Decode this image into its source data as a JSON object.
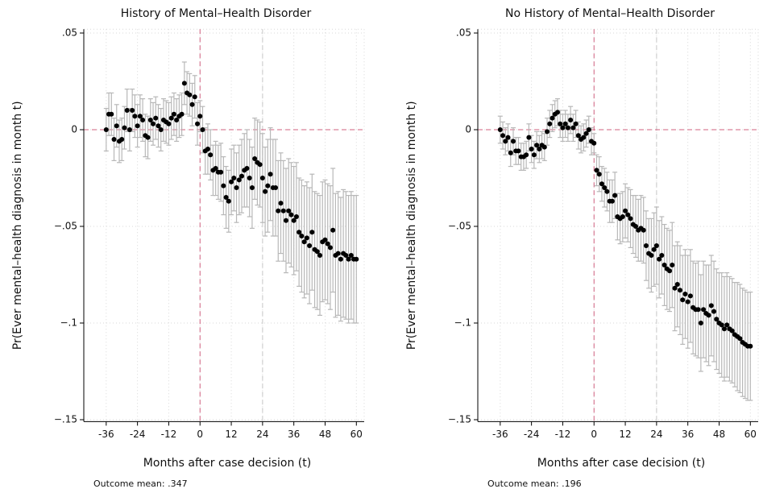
{
  "chart_data": [
    {
      "type": "errorbar",
      "title": "History of Mental–Health Disorder",
      "xlabel": "Months after case decision (t)",
      "ylabel": "Pr(Ever mental–health diagnosis in month t)",
      "note": "Outcome mean: .347",
      "x": [
        -36,
        -35,
        -34,
        -33,
        -32,
        -31,
        -30,
        -29,
        -28,
        -27,
        -26,
        -25,
        -24,
        -23,
        -22,
        -21,
        -20,
        -19,
        -18,
        -17,
        -16,
        -15,
        -14,
        -13,
        -12,
        -11,
        -10,
        -9,
        -8,
        -7,
        -6,
        -5,
        -4,
        -3,
        -2,
        -1,
        0,
        1,
        2,
        3,
        4,
        5,
        6,
        7,
        8,
        9,
        10,
        11,
        12,
        13,
        14,
        15,
        16,
        17,
        18,
        19,
        20,
        21,
        22,
        23,
        24,
        25,
        26,
        27,
        28,
        29,
        30,
        31,
        32,
        33,
        34,
        35,
        36,
        37,
        38,
        39,
        40,
        41,
        42,
        43,
        44,
        45,
        46,
        47,
        48,
        49,
        50,
        51,
        52,
        53,
        54,
        55,
        56,
        57,
        58,
        59,
        60
      ],
      "values": [
        0,
        0.008,
        0.008,
        -0.005,
        0.002,
        -0.006,
        -0.005,
        0.001,
        0.01,
        0,
        0.01,
        0.007,
        0.002,
        0.007,
        0.005,
        -0.003,
        -0.004,
        0.005,
        0.003,
        0.006,
        0.002,
        0,
        0.005,
        0.004,
        0.003,
        0.006,
        0.008,
        0.005,
        0.007,
        0.008,
        0.024,
        0.019,
        0.018,
        0.013,
        0.017,
        0.003,
        0.007,
        0,
        -0.011,
        -0.01,
        -0.013,
        -0.021,
        -0.02,
        -0.022,
        -0.022,
        -0.029,
        -0.035,
        -0.037,
        -0.027,
        -0.025,
        -0.03,
        -0.026,
        -0.024,
        -0.021,
        -0.02,
        -0.025,
        -0.03,
        -0.015,
        -0.017,
        -0.018,
        -0.025,
        -0.032,
        -0.029,
        -0.023,
        -0.03,
        -0.03,
        -0.042,
        -0.038,
        -0.042,
        -0.047,
        -0.042,
        -0.044,
        -0.047,
        -0.045,
        -0.053,
        -0.055,
        -0.058,
        -0.056,
        -0.06,
        -0.053,
        -0.062,
        -0.063,
        -0.065,
        -0.058,
        -0.057,
        -0.059,
        -0.061,
        -0.052,
        -0.065,
        -0.064,
        -0.067,
        -0.064,
        -0.065,
        -0.067,
        -0.065,
        -0.067,
        -0.067
      ],
      "errors": [
        0.011,
        0.011,
        0.011,
        0.011,
        0.011,
        0.011,
        0.011,
        0.011,
        0.011,
        0.011,
        0.011,
        0.011,
        0.011,
        0.011,
        0.011,
        0.011,
        0.011,
        0.011,
        0.011,
        0.011,
        0.011,
        0.011,
        0.011,
        0.011,
        0.011,
        0.011,
        0.011,
        0.011,
        0.011,
        0.011,
        0.011,
        0.011,
        0.011,
        0.011,
        0.011,
        0.011,
        0.008,
        0.012,
        0.012,
        0.013,
        0.013,
        0.013,
        0.014,
        0.014,
        0.015,
        0.015,
        0.016,
        0.016,
        0.017,
        0.017,
        0.018,
        0.018,
        0.019,
        0.019,
        0.02,
        0.02,
        0.021,
        0.021,
        0.022,
        0.022,
        0.023,
        0.023,
        0.024,
        0.024,
        0.025,
        0.025,
        0.026,
        0.026,
        0.026,
        0.027,
        0.027,
        0.027,
        0.028,
        0.028,
        0.028,
        0.029,
        0.029,
        0.029,
        0.03,
        0.03,
        0.03,
        0.03,
        0.031,
        0.031,
        0.031,
        0.031,
        0.032,
        0.032,
        0.032,
        0.032,
        0.032,
        0.033,
        0.033,
        0.033,
        0.033,
        0.033,
        0.033
      ],
      "marker_color": "#000000",
      "error_color": "#b8b8b8",
      "xlim": [
        -44.6,
        63
      ],
      "ylim": [
        -0.151,
        0.052
      ],
      "xticks": [
        -36,
        -24,
        -12,
        0,
        12,
        24,
        36,
        48,
        60
      ],
      "yticks": [
        {
          "value": 0.05,
          "label": ".05"
        },
        0,
        {
          "value": -0.05,
          "label": "−.05"
        },
        {
          "value": -0.1,
          "label": "−.1"
        },
        {
          "value": -0.15,
          "label": "−.15"
        }
      ],
      "grid": true,
      "vlines": [
        {
          "value": 0,
          "color": "#d0607f"
        },
        {
          "value": 24,
          "color": "#c8c8c8"
        }
      ],
      "hlines": [
        {
          "value": 0,
          "color": "#d0607f"
        }
      ]
    },
    {
      "type": "errorbar",
      "title": "No History of Mental–Health Disorder",
      "xlabel": "Months after case decision (t)",
      "ylabel": "Pr(Ever mental–health diagnosis in month t)",
      "note": "Outcome mean: .196",
      "x": [
        -36,
        -35,
        -34,
        -33,
        -32,
        -31,
        -30,
        -29,
        -28,
        -27,
        -26,
        -25,
        -24,
        -23,
        -22,
        -21,
        -20,
        -19,
        -18,
        -17,
        -16,
        -15,
        -14,
        -13,
        -12,
        -11,
        -10,
        -9,
        -8,
        -7,
        -6,
        -5,
        -4,
        -3,
        -2,
        -1,
        0,
        1,
        2,
        3,
        4,
        5,
        6,
        7,
        8,
        9,
        10,
        11,
        12,
        13,
        14,
        15,
        16,
        17,
        18,
        19,
        20,
        21,
        22,
        23,
        24,
        25,
        26,
        27,
        28,
        29,
        30,
        31,
        32,
        33,
        34,
        35,
        36,
        37,
        38,
        39,
        40,
        41,
        42,
        43,
        44,
        45,
        46,
        47,
        48,
        49,
        50,
        51,
        52,
        53,
        54,
        55,
        56,
        57,
        58,
        59,
        60
      ],
      "values": [
        0,
        -0.003,
        -0.006,
        -0.004,
        -0.012,
        -0.006,
        -0.011,
        -0.011,
        -0.014,
        -0.014,
        -0.013,
        -0.004,
        -0.01,
        -0.013,
        -0.008,
        -0.01,
        -0.008,
        -0.009,
        -0.001,
        0.003,
        0.006,
        0.008,
        0.009,
        0.003,
        0.001,
        0.003,
        0.001,
        0.005,
        0.001,
        0.003,
        -0.003,
        -0.005,
        -0.004,
        -0.002,
        0,
        -0.006,
        -0.007,
        -0.021,
        -0.023,
        -0.028,
        -0.03,
        -0.032,
        -0.037,
        -0.037,
        -0.034,
        -0.045,
        -0.046,
        -0.045,
        -0.042,
        -0.044,
        -0.046,
        -0.049,
        -0.05,
        -0.052,
        -0.051,
        -0.052,
        -0.06,
        -0.064,
        -0.065,
        -0.062,
        -0.06,
        -0.067,
        -0.065,
        -0.07,
        -0.072,
        -0.073,
        -0.07,
        -0.082,
        -0.08,
        -0.083,
        -0.088,
        -0.085,
        -0.089,
        -0.086,
        -0.092,
        -0.093,
        -0.093,
        -0.1,
        -0.093,
        -0.095,
        -0.096,
        -0.091,
        -0.094,
        -0.098,
        -0.1,
        -0.101,
        -0.103,
        -0.101,
        -0.103,
        -0.104,
        -0.106,
        -0.107,
        -0.108,
        -0.11,
        -0.111,
        -0.112,
        -0.112
      ],
      "errors": [
        0.007,
        0.007,
        0.007,
        0.007,
        0.007,
        0.007,
        0.007,
        0.007,
        0.007,
        0.007,
        0.007,
        0.007,
        0.007,
        0.007,
        0.007,
        0.007,
        0.007,
        0.007,
        0.007,
        0.007,
        0.007,
        0.007,
        0.007,
        0.007,
        0.007,
        0.007,
        0.007,
        0.007,
        0.007,
        0.007,
        0.007,
        0.007,
        0.007,
        0.007,
        0.007,
        0.007,
        0.005,
        0.008,
        0.009,
        0.009,
        0.01,
        0.01,
        0.011,
        0.011,
        0.012,
        0.012,
        0.013,
        0.013,
        0.014,
        0.014,
        0.015,
        0.015,
        0.016,
        0.016,
        0.017,
        0.017,
        0.018,
        0.018,
        0.019,
        0.019,
        0.02,
        0.02,
        0.02,
        0.021,
        0.021,
        0.021,
        0.022,
        0.022,
        0.022,
        0.023,
        0.023,
        0.023,
        0.024,
        0.024,
        0.024,
        0.024,
        0.025,
        0.025,
        0.025,
        0.025,
        0.026,
        0.026,
        0.026,
        0.026,
        0.026,
        0.027,
        0.027,
        0.027,
        0.027,
        0.027,
        0.027,
        0.028,
        0.028,
        0.028,
        0.028,
        0.028,
        0.028
      ],
      "marker_color": "#000000",
      "error_color": "#b8b8b8",
      "xlim": [
        -44.6,
        63
      ],
      "ylim": [
        -0.151,
        0.052
      ],
      "xticks": [
        -36,
        -24,
        -12,
        0,
        12,
        24,
        36,
        48,
        60
      ],
      "yticks": [
        {
          "value": 0.05,
          "label": ".05"
        },
        0,
        {
          "value": -0.05,
          "label": "−.05"
        },
        {
          "value": -0.1,
          "label": "−.1"
        },
        {
          "value": -0.15,
          "label": "−.15"
        }
      ],
      "grid": true,
      "vlines": [
        {
          "value": 0,
          "color": "#d0607f"
        },
        {
          "value": 24,
          "color": "#c8c8c8"
        }
      ],
      "hlines": [
        {
          "value": 0,
          "color": "#d0607f"
        }
      ]
    }
  ]
}
